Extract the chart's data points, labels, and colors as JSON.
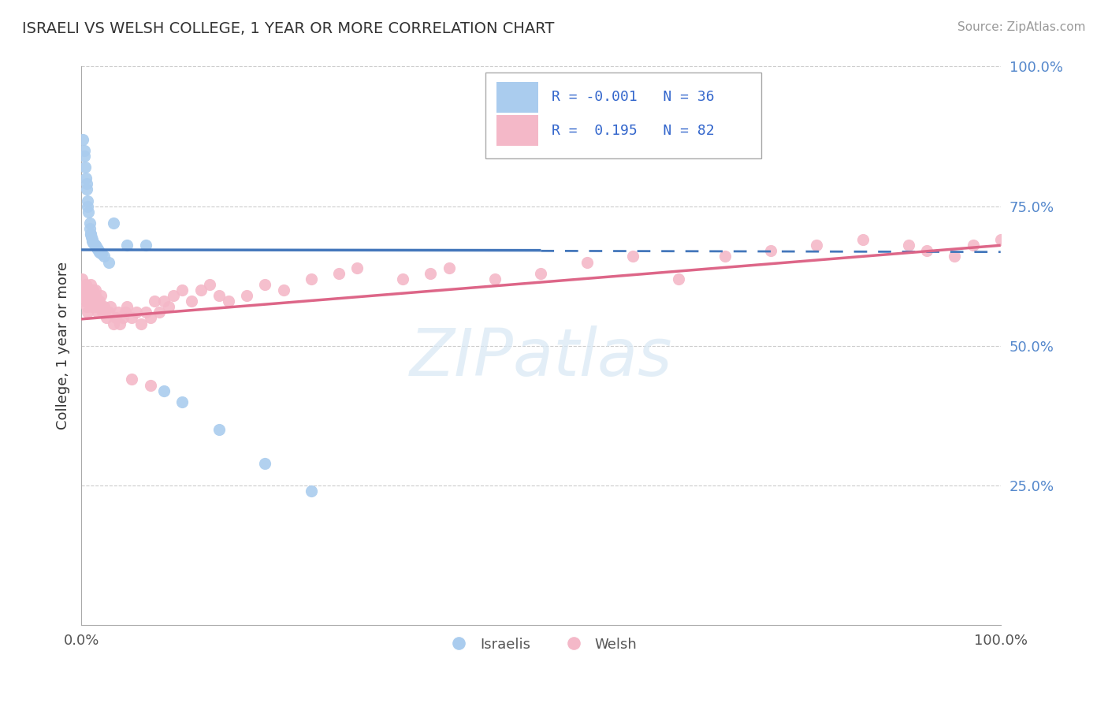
{
  "title": "ISRAELI VS WELSH COLLEGE, 1 YEAR OR MORE CORRELATION CHART",
  "source_text": "Source: ZipAtlas.com",
  "ylabel": "College, 1 year or more",
  "xlim": [
    0.0,
    1.0
  ],
  "ylim": [
    0.0,
    1.0
  ],
  "watermark": "ZIPatlas",
  "israelis_color": "#aaccee",
  "welsh_color": "#f4b8c8",
  "trendline_israelis_color": "#4477bb",
  "trendline_welsh_color": "#dd6688",
  "R_israelis": -0.001,
  "N_israelis": 36,
  "R_welsh": 0.195,
  "N_welsh": 82,
  "isr_x": [
    0.002,
    0.003,
    0.003,
    0.004,
    0.005,
    0.006,
    0.006,
    0.007,
    0.007,
    0.008,
    0.009,
    0.009,
    0.01,
    0.01,
    0.011,
    0.012,
    0.012,
    0.013,
    0.014,
    0.015,
    0.016,
    0.017,
    0.018,
    0.019,
    0.02,
    0.022,
    0.025,
    0.03,
    0.035,
    0.05,
    0.07,
    0.09,
    0.11,
    0.15,
    0.2,
    0.25
  ],
  "isr_y": [
    0.87,
    0.85,
    0.84,
    0.82,
    0.8,
    0.79,
    0.78,
    0.76,
    0.75,
    0.74,
    0.72,
    0.71,
    0.7,
    0.7,
    0.695,
    0.69,
    0.688,
    0.685,
    0.683,
    0.68,
    0.678,
    0.675,
    0.673,
    0.67,
    0.668,
    0.665,
    0.66,
    0.65,
    0.72,
    0.68,
    0.68,
    0.42,
    0.4,
    0.35,
    0.29,
    0.24
  ],
  "welsh_x": [
    0.001,
    0.002,
    0.003,
    0.004,
    0.004,
    0.005,
    0.005,
    0.006,
    0.006,
    0.007,
    0.007,
    0.008,
    0.009,
    0.01,
    0.01,
    0.011,
    0.012,
    0.012,
    0.013,
    0.014,
    0.015,
    0.015,
    0.016,
    0.017,
    0.018,
    0.019,
    0.02,
    0.021,
    0.022,
    0.023,
    0.025,
    0.027,
    0.03,
    0.032,
    0.035,
    0.038,
    0.04,
    0.042,
    0.045,
    0.048,
    0.05,
    0.055,
    0.06,
    0.065,
    0.07,
    0.075,
    0.08,
    0.085,
    0.09,
    0.095,
    0.1,
    0.11,
    0.12,
    0.13,
    0.14,
    0.15,
    0.16,
    0.18,
    0.2,
    0.22,
    0.25,
    0.28,
    0.3,
    0.35,
    0.38,
    0.4,
    0.45,
    0.5,
    0.55,
    0.6,
    0.65,
    0.7,
    0.75,
    0.8,
    0.85,
    0.9,
    0.92,
    0.95,
    0.97,
    1.0,
    0.055,
    0.075
  ],
  "welsh_y": [
    0.62,
    0.6,
    0.59,
    0.58,
    0.6,
    0.61,
    0.59,
    0.58,
    0.57,
    0.58,
    0.56,
    0.58,
    0.6,
    0.61,
    0.59,
    0.58,
    0.57,
    0.59,
    0.6,
    0.58,
    0.59,
    0.6,
    0.57,
    0.58,
    0.56,
    0.57,
    0.58,
    0.59,
    0.57,
    0.56,
    0.57,
    0.55,
    0.56,
    0.57,
    0.54,
    0.55,
    0.56,
    0.54,
    0.55,
    0.56,
    0.57,
    0.55,
    0.56,
    0.54,
    0.56,
    0.55,
    0.58,
    0.56,
    0.58,
    0.57,
    0.59,
    0.6,
    0.58,
    0.6,
    0.61,
    0.59,
    0.58,
    0.59,
    0.61,
    0.6,
    0.62,
    0.63,
    0.64,
    0.62,
    0.63,
    0.64,
    0.62,
    0.63,
    0.65,
    0.66,
    0.62,
    0.66,
    0.67,
    0.68,
    0.69,
    0.68,
    0.67,
    0.66,
    0.68,
    0.69,
    0.44,
    0.43
  ],
  "isr_trend_x": [
    0.0,
    0.52
  ],
  "isr_trend_y": [
    0.672,
    0.67
  ],
  "welsh_trend_x": [
    0.0,
    1.0
  ],
  "welsh_trend_y": [
    0.548,
    0.68
  ]
}
